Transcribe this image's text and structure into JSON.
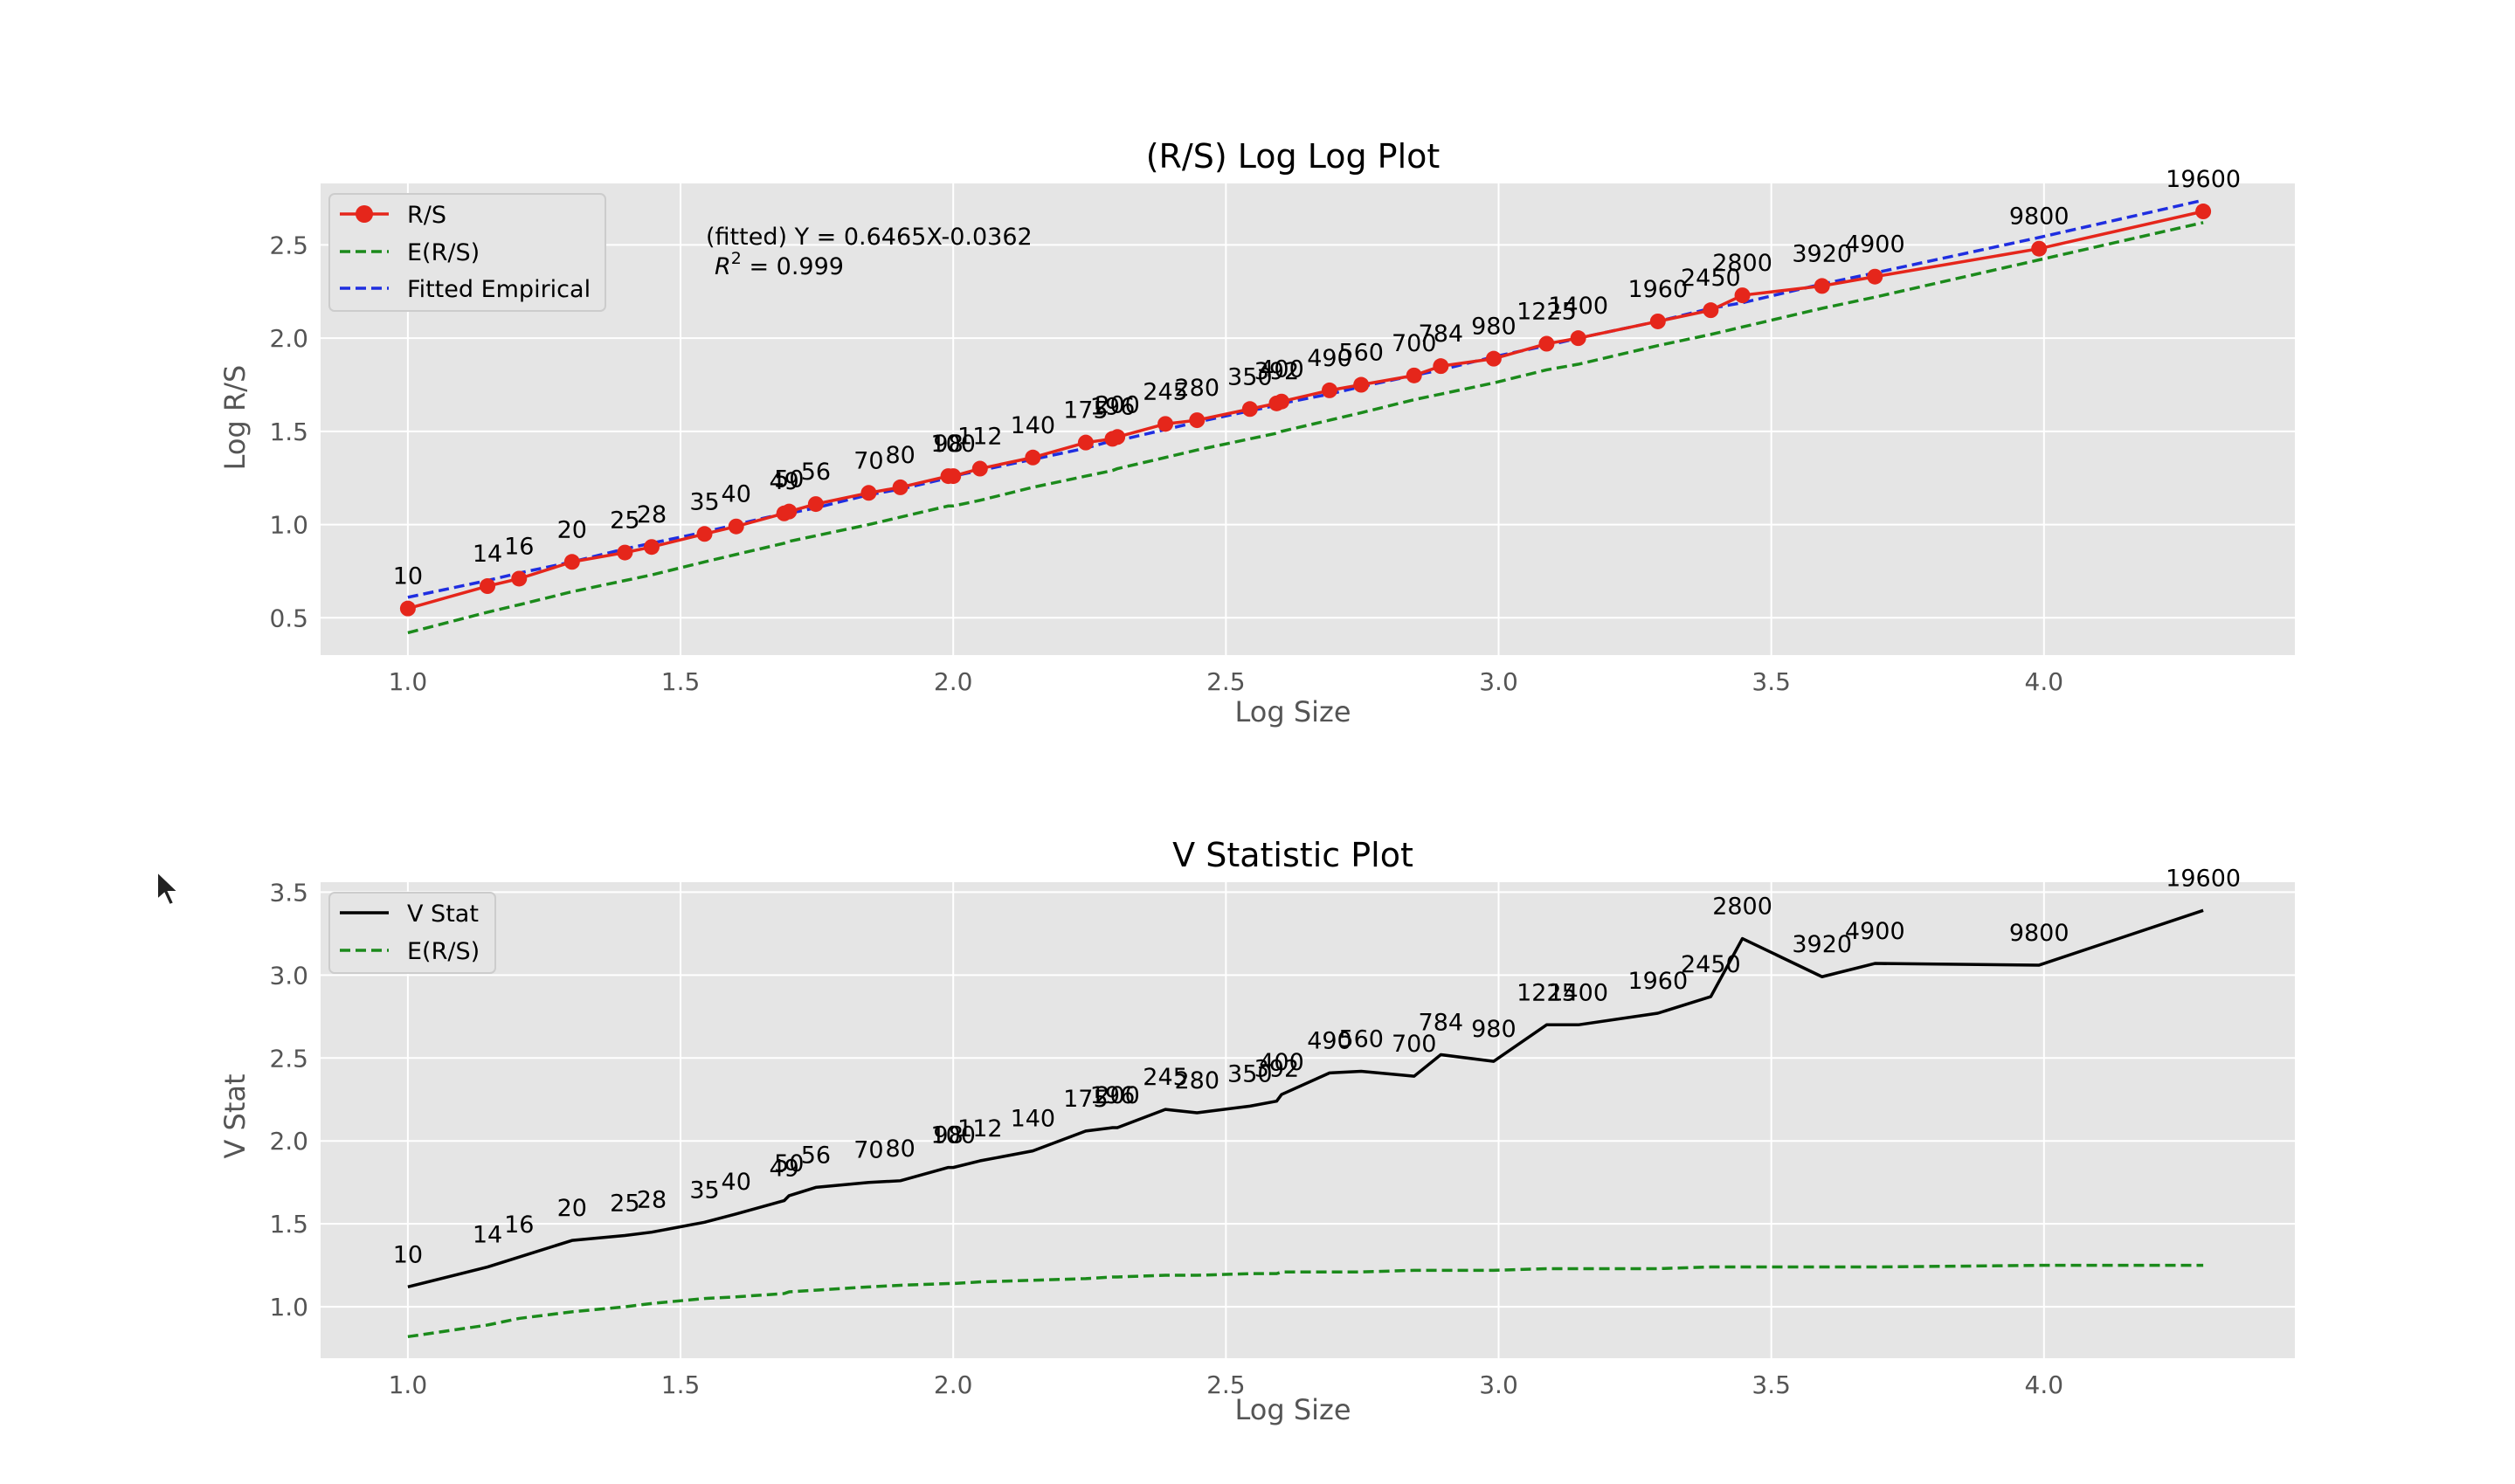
{
  "colors": {
    "panel_bg": "#e5e5e5",
    "grid": "#ffffff",
    "rs": "#e5261b",
    "expected": "#1b8a1b",
    "fitted": "#1f2ee0",
    "vstat": "#000000"
  },
  "chart_data": [
    {
      "type": "line",
      "title": "(R/S) Log Log Plot",
      "xlabel": "Log Size",
      "ylabel": "Log R/S",
      "xlim": [
        0.84,
        4.46
      ],
      "ylim": [
        0.3,
        2.83
      ],
      "xticks": [
        "1.0",
        "1.5",
        "2.0",
        "2.5",
        "3.0",
        "3.5",
        "4.0"
      ],
      "yticks": [
        "0.5",
        "1.0",
        "1.5",
        "2.0",
        "2.5"
      ],
      "grid": true,
      "legend_position": "top-left",
      "fit_annotation": {
        "equation": "(fitted) Y = 0.6465X-0.0362",
        "r2_prefix": "R",
        "r2_sup": "2",
        "r2_value": " = 0.999"
      },
      "sizes": [
        "10",
        "14",
        "16",
        "20",
        "25",
        "28",
        "35",
        "40",
        "49",
        "50",
        "56",
        "70",
        "80",
        "98",
        "100",
        "112",
        "140",
        "175",
        "196",
        "200",
        "245",
        "280",
        "350",
        "392",
        "400",
        "490",
        "560",
        "700",
        "784",
        "980",
        "1225",
        "1400",
        "1960",
        "2450",
        "2800",
        "3920",
        "4900",
        "9800",
        "19600"
      ],
      "x": [
        1.0,
        1.146,
        1.204,
        1.301,
        1.398,
        1.447,
        1.544,
        1.602,
        1.69,
        1.699,
        1.748,
        1.845,
        1.903,
        1.991,
        2.0,
        2.049,
        2.146,
        2.243,
        2.292,
        2.301,
        2.389,
        2.447,
        2.544,
        2.593,
        2.602,
        2.69,
        2.748,
        2.845,
        2.894,
        2.991,
        3.088,
        3.146,
        3.292,
        3.389,
        3.447,
        3.593,
        3.69,
        3.991,
        4.292
      ],
      "series": [
        {
          "name": "R/S",
          "style": "solid-marker",
          "values": [
            0.55,
            0.67,
            0.71,
            0.8,
            0.85,
            0.88,
            0.95,
            0.99,
            1.06,
            1.07,
            1.11,
            1.17,
            1.2,
            1.26,
            1.26,
            1.3,
            1.36,
            1.44,
            1.46,
            1.47,
            1.54,
            1.56,
            1.62,
            1.65,
            1.66,
            1.72,
            1.75,
            1.8,
            1.85,
            1.89,
            1.97,
            2.0,
            2.09,
            2.15,
            2.23,
            2.28,
            2.33,
            2.48,
            2.68
          ]
        },
        {
          "name": "E(R/S)",
          "style": "dashed",
          "values": [
            0.42,
            0.53,
            0.57,
            0.64,
            0.7,
            0.73,
            0.8,
            0.84,
            0.9,
            0.91,
            0.94,
            1.0,
            1.04,
            1.1,
            1.1,
            1.13,
            1.2,
            1.26,
            1.29,
            1.3,
            1.36,
            1.4,
            1.46,
            1.49,
            1.5,
            1.56,
            1.6,
            1.67,
            1.7,
            1.76,
            1.83,
            1.86,
            1.96,
            2.02,
            2.06,
            2.16,
            2.22,
            2.42,
            2.62
          ]
        },
        {
          "name": "Fitted Empirical",
          "style": "dashed",
          "values": [
            0.61,
            0.7,
            0.74,
            0.8,
            0.87,
            0.9,
            0.96,
            1.0,
            1.06,
            1.06,
            1.09,
            1.16,
            1.19,
            1.25,
            1.26,
            1.29,
            1.35,
            1.41,
            1.45,
            1.45,
            1.51,
            1.55,
            1.61,
            1.64,
            1.65,
            1.7,
            1.74,
            1.8,
            1.83,
            1.9,
            1.96,
            2.0,
            2.09,
            2.16,
            2.19,
            2.29,
            2.35,
            2.54,
            2.74
          ]
        }
      ]
    },
    {
      "type": "line",
      "title": "V Statistic Plot",
      "xlabel": "Log Size",
      "ylabel": "V Stat",
      "xlim": [
        0.84,
        4.46
      ],
      "ylim": [
        0.69,
        3.56
      ],
      "xticks": [
        "1.0",
        "1.5",
        "2.0",
        "2.5",
        "3.0",
        "3.5",
        "4.0"
      ],
      "yticks": [
        "1.0",
        "1.5",
        "2.0",
        "2.5",
        "3.0",
        "3.5"
      ],
      "grid": true,
      "legend_position": "top-left",
      "sizes": [
        "10",
        "14",
        "16",
        "20",
        "25",
        "28",
        "35",
        "40",
        "49",
        "50",
        "56",
        "70",
        "80",
        "98",
        "100",
        "112",
        "140",
        "175",
        "196",
        "200",
        "245",
        "280",
        "350",
        "392",
        "400",
        "490",
        "560",
        "700",
        "784",
        "980",
        "1225",
        "1400",
        "1960",
        "2450",
        "2800",
        "3920",
        "4900",
        "9800",
        "19600"
      ],
      "x": [
        1.0,
        1.146,
        1.204,
        1.301,
        1.398,
        1.447,
        1.544,
        1.602,
        1.69,
        1.699,
        1.748,
        1.845,
        1.903,
        1.991,
        2.0,
        2.049,
        2.146,
        2.243,
        2.292,
        2.301,
        2.389,
        2.447,
        2.544,
        2.593,
        2.602,
        2.69,
        2.748,
        2.845,
        2.894,
        2.991,
        3.088,
        3.146,
        3.292,
        3.389,
        3.447,
        3.593,
        3.69,
        3.991,
        4.292
      ],
      "series": [
        {
          "name": "V Stat",
          "style": "solid",
          "values": [
            1.12,
            1.24,
            1.3,
            1.4,
            1.43,
            1.45,
            1.51,
            1.56,
            1.64,
            1.67,
            1.72,
            1.75,
            1.76,
            1.84,
            1.84,
            1.88,
            1.94,
            2.06,
            2.08,
            2.08,
            2.19,
            2.17,
            2.21,
            2.24,
            2.28,
            2.41,
            2.42,
            2.39,
            2.52,
            2.48,
            2.7,
            2.7,
            2.77,
            2.87,
            3.22,
            2.99,
            3.07,
            3.06,
            3.39
          ]
        },
        {
          "name": "E(R/S)",
          "style": "dashed",
          "values": [
            0.82,
            0.89,
            0.93,
            0.97,
            1.0,
            1.02,
            1.05,
            1.06,
            1.08,
            1.09,
            1.1,
            1.12,
            1.13,
            1.14,
            1.14,
            1.15,
            1.16,
            1.17,
            1.18,
            1.18,
            1.19,
            1.19,
            1.2,
            1.2,
            1.21,
            1.21,
            1.21,
            1.22,
            1.22,
            1.22,
            1.23,
            1.23,
            1.23,
            1.24,
            1.24,
            1.24,
            1.24,
            1.25,
            1.25
          ]
        }
      ]
    }
  ]
}
